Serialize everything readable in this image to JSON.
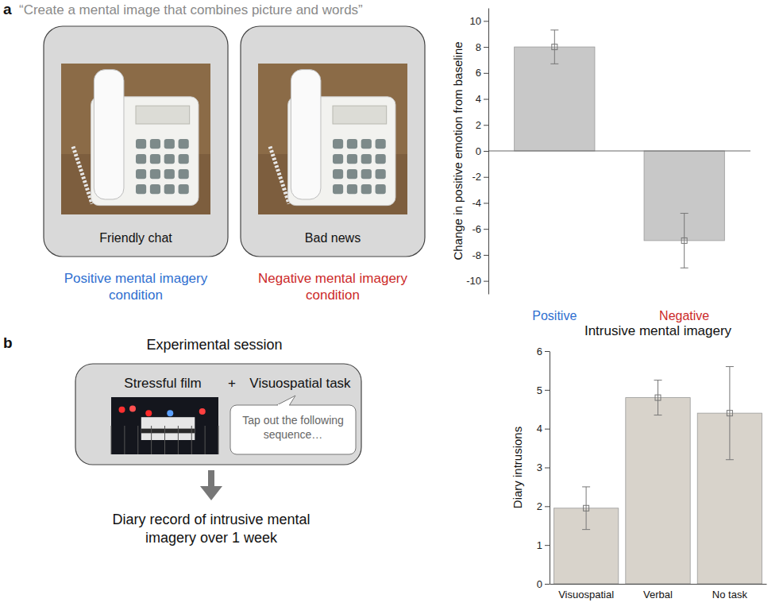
{
  "figure": {
    "panel_a": {
      "label": "a",
      "instruction": "“Create a mental image that combines picture and words”",
      "conditions": [
        {
          "caption": "Friendly chat",
          "name": "Positive mental imagery condition"
        },
        {
          "caption": "Bad news",
          "name": "Negative mental imagery condition"
        }
      ]
    },
    "panel_b": {
      "label": "b",
      "session_title": "Experimental session",
      "film": "Stressful film",
      "plus": "+",
      "task": "Visuospatial task",
      "speech": "Tap out the following sequence…",
      "outcome": "Diary record of intrusive mental imagery over 1 week"
    }
  },
  "chart_data": [
    {
      "type": "bar",
      "ylabel": "Change in positive emotion from baseline",
      "categories": [
        "Positive",
        "Negative"
      ],
      "values": [
        8.0,
        -6.9
      ],
      "errors": [
        1.3,
        2.1
      ],
      "color": "#c8c8c8",
      "ylim": [
        -11,
        11
      ],
      "yticks": [
        -10,
        -8,
        -6,
        -4,
        -2,
        0,
        2,
        4,
        6,
        8,
        10
      ],
      "grid": false
    },
    {
      "type": "bar",
      "title": "Intrusive mental imagery",
      "ylabel": "Diary intrusions",
      "categories": [
        "Visuospatial",
        "Verbal",
        "No task"
      ],
      "values": [
        1.95,
        4.8,
        4.4
      ],
      "errors": [
        0.55,
        0.45,
        1.2
      ],
      "color": "#d8d3cb",
      "ylim": [
        0,
        6
      ],
      "yticks": [
        0,
        1,
        2,
        3,
        4,
        5,
        6
      ],
      "grid": false
    }
  ]
}
